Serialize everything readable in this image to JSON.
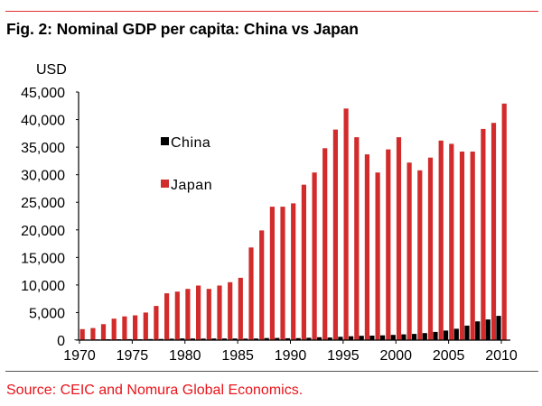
{
  "header": {
    "title": "Fig. 2: Nominal GDP per capita: China vs Japan"
  },
  "footer": {
    "source": "Source: CEIC and Nomura Global Economics."
  },
  "colors": {
    "china": "#000000",
    "japan": "#d22b2b",
    "rule_top": "#e03030",
    "source_text": "#e8141a"
  },
  "chart_data": {
    "type": "bar",
    "title": "Fig. 2: Nominal GDP per capita: China vs Japan",
    "xlabel": "",
    "ylabel": "USD",
    "ylim": [
      0,
      45000
    ],
    "yticks": [
      0,
      5000,
      10000,
      15000,
      20000,
      25000,
      30000,
      35000,
      40000,
      45000
    ],
    "ytick_labels": [
      "0",
      "5,000",
      "10,000",
      "15,000",
      "20,000",
      "25,000",
      "30,000",
      "35,000",
      "40,000",
      "45,000"
    ],
    "xtick_labels": [
      "1970",
      "1975",
      "1980",
      "1985",
      "1990",
      "1995",
      "2000",
      "2005",
      "2010"
    ],
    "grid": false,
    "legend": {
      "placement": "top-left-inside",
      "entries": [
        "China",
        "Japan"
      ]
    },
    "categories": [
      1970,
      1971,
      1972,
      1973,
      1974,
      1975,
      1976,
      1977,
      1978,
      1979,
      1980,
      1981,
      1982,
      1983,
      1984,
      1985,
      1986,
      1987,
      1988,
      1989,
      1990,
      1991,
      1992,
      1993,
      1994,
      1995,
      1996,
      1997,
      1998,
      1999,
      2000,
      2001,
      2002,
      2003,
      2004,
      2005,
      2006,
      2007,
      2008,
      2009,
      2010
    ],
    "series": [
      {
        "name": "China",
        "values": [
          110,
          120,
          130,
          160,
          160,
          180,
          160,
          190,
          220,
          260,
          310,
          290,
          280,
          290,
          300,
          290,
          280,
          300,
          370,
          400,
          340,
          360,
          420,
          520,
          470,
          600,
          700,
          780,
          820,
          860,
          950,
          1040,
          1130,
          1270,
          1490,
          1730,
          2070,
          2640,
          3400,
          3740,
          4400
        ]
      },
      {
        "name": "Japan",
        "values": [
          2000,
          2200,
          2900,
          3900,
          4300,
          4500,
          5000,
          6200,
          8500,
          8800,
          9300,
          9900,
          9300,
          9900,
          10500,
          11300,
          16800,
          19900,
          24200,
          24200,
          24800,
          28200,
          30400,
          34800,
          38200,
          42000,
          36800,
          33700,
          30400,
          34600,
          36800,
          32200,
          30800,
          33100,
          36200,
          35600,
          34200,
          34200,
          38300,
          39400,
          42900
        ]
      }
    ]
  }
}
